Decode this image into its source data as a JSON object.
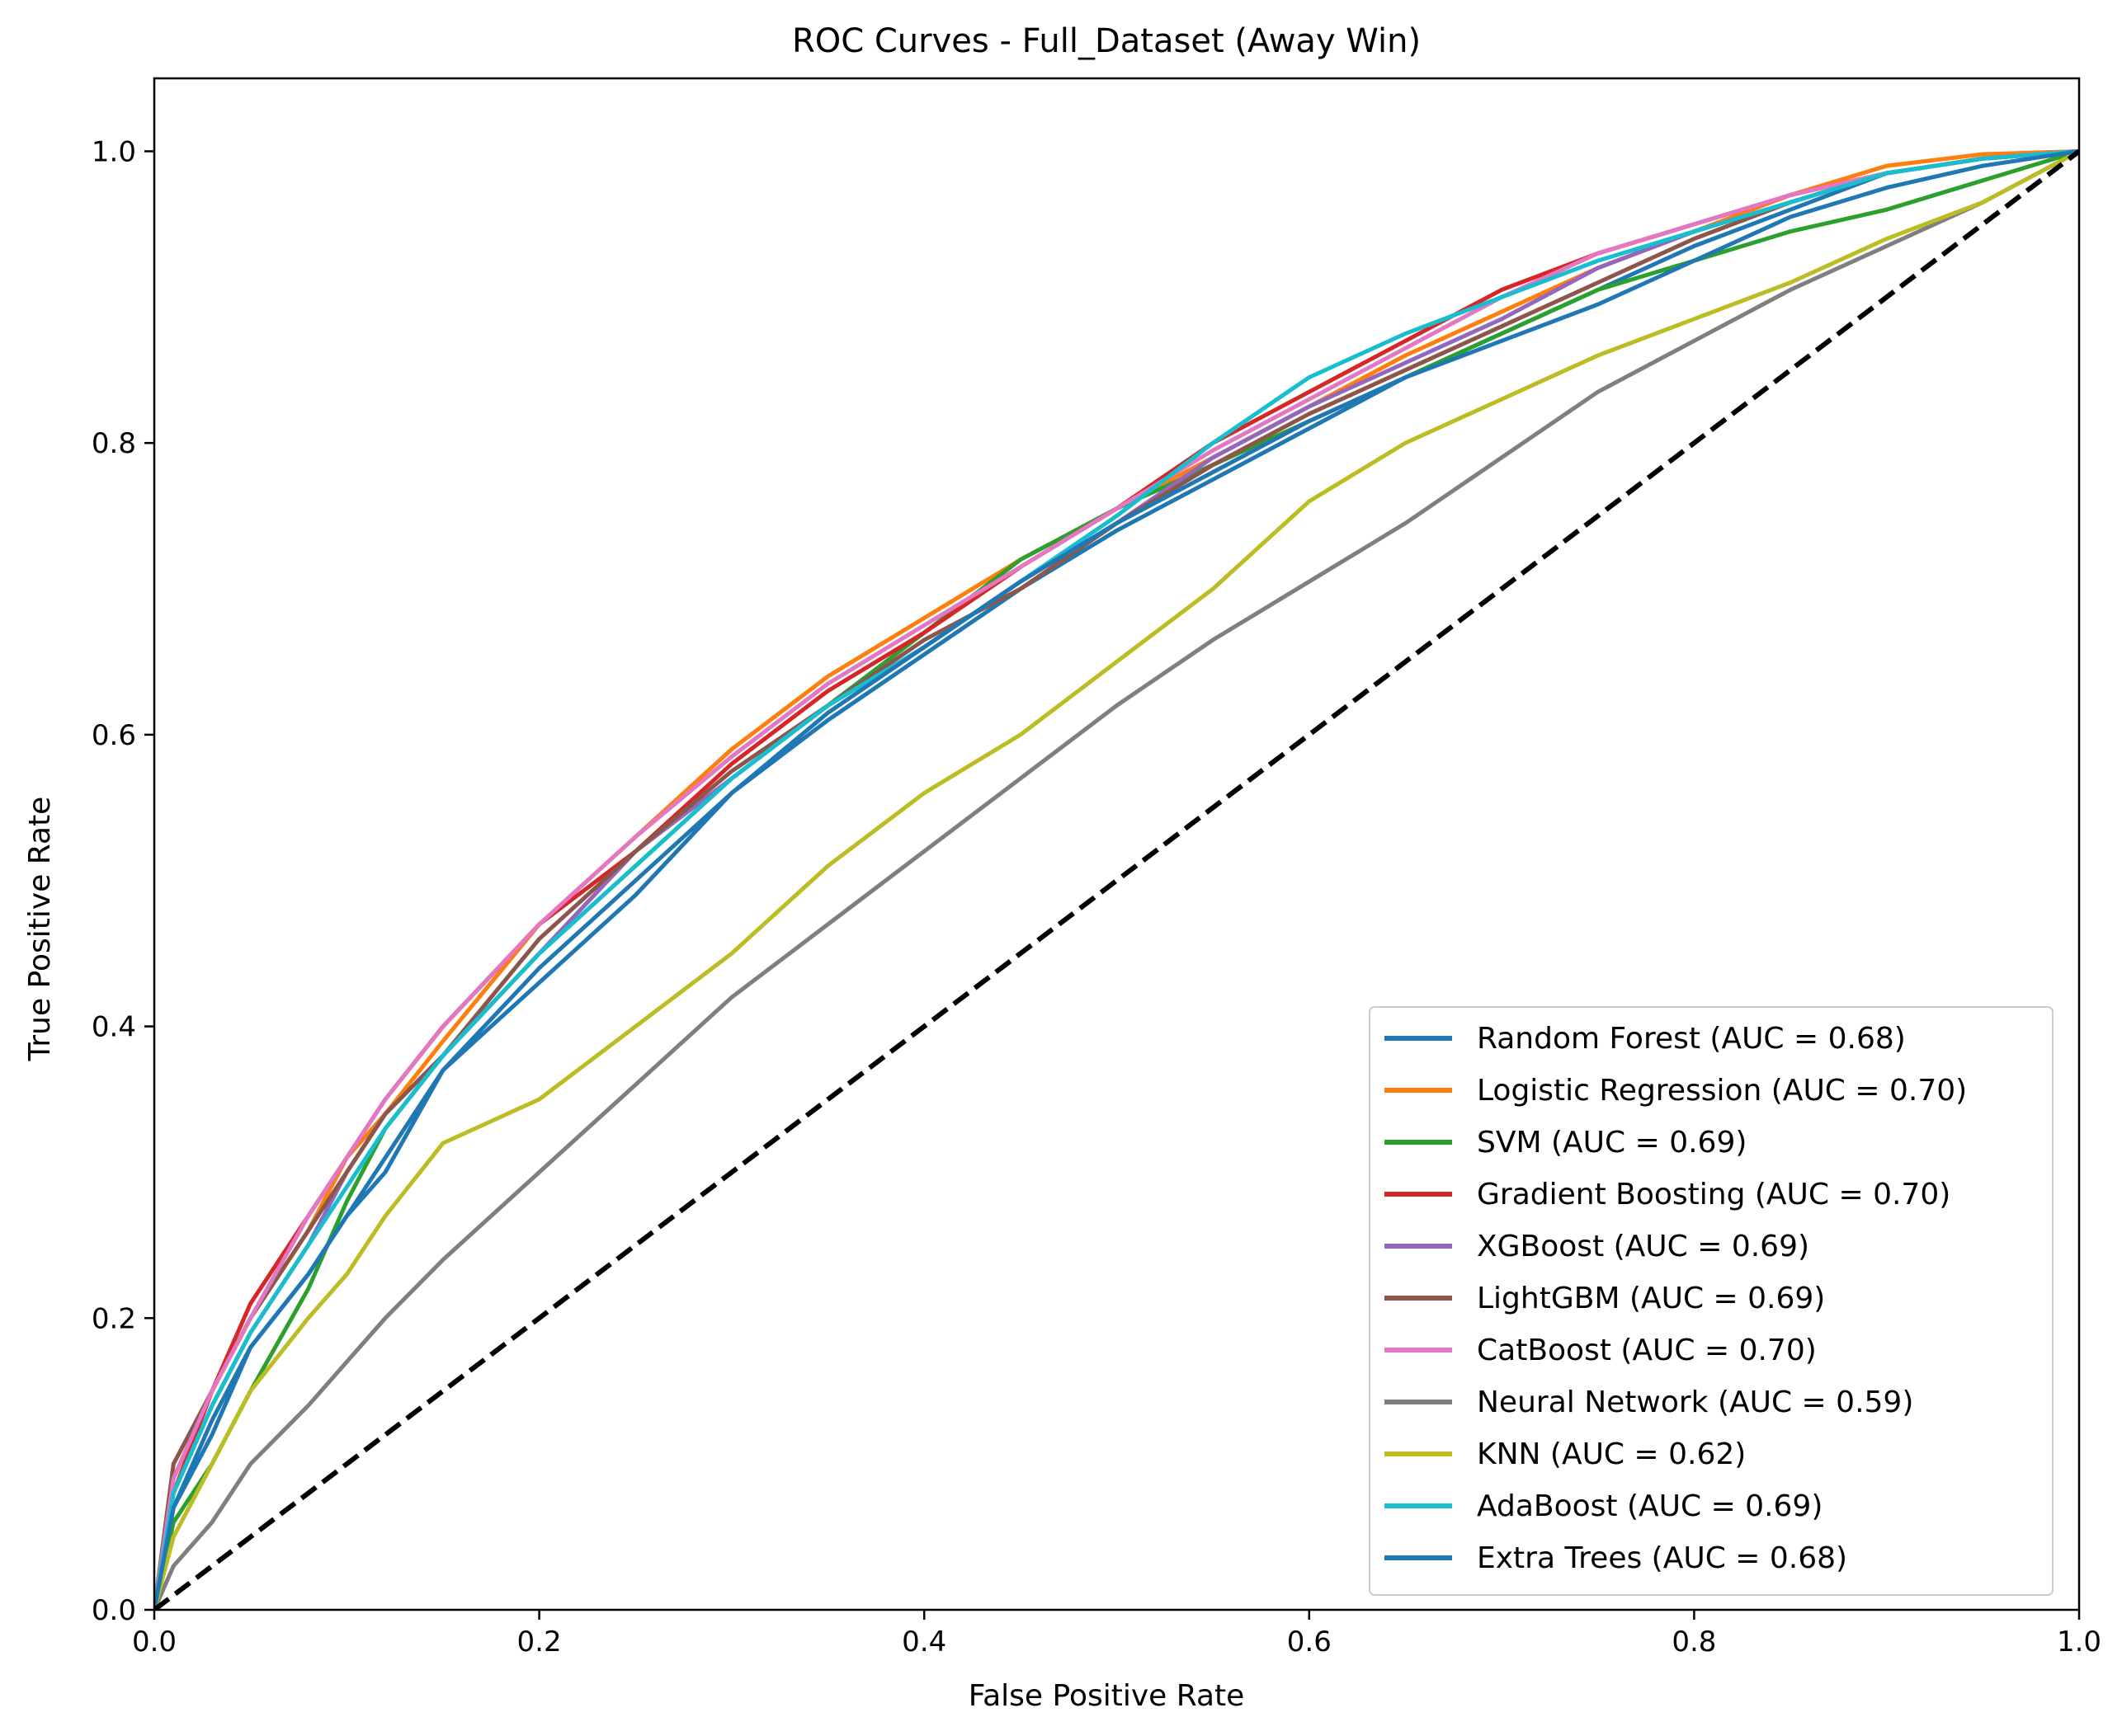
{
  "chart_data": {
    "type": "line",
    "title": "ROC Curves - Full_Dataset (Away Win)",
    "xlabel": "False Positive Rate",
    "ylabel": "True Positive Rate",
    "xlim": [
      0.0,
      1.0
    ],
    "ylim": [
      0.0,
      1.05
    ],
    "xticks": [
      "0.0",
      "0.2",
      "0.4",
      "0.6",
      "0.8",
      "1.0"
    ],
    "yticks": [
      "0.0",
      "0.2",
      "0.4",
      "0.6",
      "0.8",
      "1.0"
    ],
    "grid": false,
    "legend_position": "lower-right",
    "reference_line": {
      "x": [
        0.0,
        1.0
      ],
      "y": [
        0.0,
        1.0
      ],
      "color": "#000000",
      "style": "dashed"
    },
    "series": [
      {
        "name": "Random Forest (AUC = 0.68)",
        "color": "#1f77b4",
        "x": [
          0,
          0.01,
          0.03,
          0.05,
          0.08,
          0.1,
          0.12,
          0.15,
          0.2,
          0.25,
          0.3,
          0.35,
          0.4,
          0.45,
          0.5,
          0.55,
          0.6,
          0.65,
          0.7,
          0.75,
          0.8,
          0.85,
          0.9,
          0.95,
          1.0
        ],
        "y": [
          0,
          0.07,
          0.13,
          0.18,
          0.23,
          0.27,
          0.31,
          0.37,
          0.44,
          0.5,
          0.56,
          0.61,
          0.655,
          0.7,
          0.74,
          0.775,
          0.81,
          0.845,
          0.875,
          0.905,
          0.935,
          0.96,
          0.985,
          0.995,
          1.0
        ]
      },
      {
        "name": "Logistic Regression (AUC = 0.70)",
        "color": "#ff7f0e",
        "x": [
          0,
          0.01,
          0.03,
          0.05,
          0.08,
          0.1,
          0.12,
          0.15,
          0.2,
          0.25,
          0.3,
          0.35,
          0.4,
          0.45,
          0.5,
          0.55,
          0.6,
          0.65,
          0.7,
          0.75,
          0.8,
          0.85,
          0.9,
          0.95,
          1.0
        ],
        "y": [
          0,
          0.09,
          0.15,
          0.2,
          0.26,
          0.31,
          0.34,
          0.39,
          0.47,
          0.53,
          0.59,
          0.64,
          0.68,
          0.72,
          0.755,
          0.79,
          0.825,
          0.86,
          0.89,
          0.92,
          0.945,
          0.97,
          0.99,
          0.998,
          1.0
        ]
      },
      {
        "name": "SVM (AUC = 0.69)",
        "color": "#2ca02c",
        "x": [
          0,
          0.01,
          0.03,
          0.05,
          0.08,
          0.1,
          0.12,
          0.15,
          0.2,
          0.25,
          0.3,
          0.35,
          0.4,
          0.45,
          0.5,
          0.55,
          0.6,
          0.65,
          0.7,
          0.75,
          0.8,
          0.85,
          0.9,
          0.95,
          1.0
        ],
        "y": [
          0,
          0.06,
          0.1,
          0.15,
          0.22,
          0.28,
          0.33,
          0.38,
          0.45,
          0.51,
          0.57,
          0.62,
          0.67,
          0.72,
          0.755,
          0.785,
          0.815,
          0.845,
          0.875,
          0.905,
          0.925,
          0.945,
          0.96,
          0.98,
          1.0
        ]
      },
      {
        "name": "Gradient Boosting (AUC = 0.70)",
        "color": "#d62728",
        "x": [
          0,
          0.01,
          0.03,
          0.05,
          0.08,
          0.1,
          0.12,
          0.15,
          0.2,
          0.25,
          0.3,
          0.35,
          0.4,
          0.45,
          0.5,
          0.55,
          0.6,
          0.65,
          0.7,
          0.75,
          0.8,
          0.85,
          0.9,
          0.95,
          1.0
        ],
        "y": [
          0,
          0.08,
          0.15,
          0.21,
          0.27,
          0.31,
          0.35,
          0.4,
          0.47,
          0.52,
          0.58,
          0.63,
          0.67,
          0.715,
          0.755,
          0.8,
          0.835,
          0.87,
          0.905,
          0.93,
          0.95,
          0.97,
          0.985,
          0.995,
          1.0
        ]
      },
      {
        "name": "XGBoost (AUC = 0.69)",
        "color": "#9467bd",
        "x": [
          0,
          0.01,
          0.03,
          0.05,
          0.08,
          0.1,
          0.12,
          0.15,
          0.2,
          0.25,
          0.3,
          0.35,
          0.4,
          0.45,
          0.5,
          0.55,
          0.6,
          0.65,
          0.7,
          0.75,
          0.8,
          0.85,
          0.9,
          0.95,
          1.0
        ],
        "y": [
          0,
          0.08,
          0.14,
          0.19,
          0.25,
          0.3,
          0.34,
          0.38,
          0.45,
          0.52,
          0.57,
          0.62,
          0.66,
          0.705,
          0.745,
          0.79,
          0.825,
          0.855,
          0.885,
          0.92,
          0.945,
          0.965,
          0.985,
          0.995,
          1.0
        ]
      },
      {
        "name": "LightGBM (AUC = 0.69)",
        "color": "#8c564b",
        "x": [
          0,
          0.01,
          0.03,
          0.05,
          0.08,
          0.1,
          0.12,
          0.15,
          0.2,
          0.25,
          0.3,
          0.35,
          0.4,
          0.45,
          0.5,
          0.55,
          0.6,
          0.65,
          0.7,
          0.75,
          0.8,
          0.85,
          0.9,
          0.95,
          1.0
        ],
        "y": [
          0,
          0.1,
          0.15,
          0.2,
          0.26,
          0.3,
          0.34,
          0.38,
          0.46,
          0.52,
          0.575,
          0.62,
          0.665,
          0.7,
          0.745,
          0.785,
          0.82,
          0.85,
          0.88,
          0.91,
          0.94,
          0.965,
          0.985,
          0.995,
          1.0
        ]
      },
      {
        "name": "CatBoost (AUC = 0.70)",
        "color": "#e377c2",
        "x": [
          0,
          0.01,
          0.03,
          0.05,
          0.08,
          0.1,
          0.12,
          0.15,
          0.2,
          0.25,
          0.3,
          0.35,
          0.4,
          0.45,
          0.5,
          0.55,
          0.6,
          0.65,
          0.7,
          0.75,
          0.8,
          0.85,
          0.9,
          0.95,
          1.0
        ],
        "y": [
          0,
          0.09,
          0.15,
          0.2,
          0.27,
          0.31,
          0.35,
          0.4,
          0.47,
          0.53,
          0.585,
          0.635,
          0.675,
          0.715,
          0.755,
          0.795,
          0.83,
          0.865,
          0.9,
          0.93,
          0.95,
          0.97,
          0.985,
          0.995,
          1.0
        ]
      },
      {
        "name": "Neural Network (AUC = 0.59)",
        "color": "#7f7f7f",
        "x": [
          0,
          0.01,
          0.03,
          0.05,
          0.08,
          0.1,
          0.12,
          0.15,
          0.2,
          0.25,
          0.3,
          0.35,
          0.4,
          0.45,
          0.5,
          0.55,
          0.6,
          0.65,
          0.7,
          0.75,
          0.8,
          0.85,
          0.9,
          0.95,
          1.0
        ],
        "y": [
          0,
          0.03,
          0.06,
          0.1,
          0.14,
          0.17,
          0.2,
          0.24,
          0.3,
          0.36,
          0.42,
          0.47,
          0.52,
          0.57,
          0.62,
          0.665,
          0.705,
          0.745,
          0.79,
          0.835,
          0.87,
          0.905,
          0.935,
          0.965,
          1.0
        ]
      },
      {
        "name": "KNN (AUC = 0.62)",
        "color": "#bcbd22",
        "x": [
          0,
          0.01,
          0.03,
          0.05,
          0.08,
          0.1,
          0.12,
          0.15,
          0.2,
          0.25,
          0.3,
          0.35,
          0.4,
          0.45,
          0.5,
          0.55,
          0.6,
          0.65,
          0.7,
          0.75,
          0.8,
          0.85,
          0.9,
          0.95,
          1.0
        ],
        "y": [
          0,
          0.05,
          0.1,
          0.15,
          0.2,
          0.23,
          0.27,
          0.32,
          0.35,
          0.4,
          0.45,
          0.51,
          0.56,
          0.6,
          0.65,
          0.7,
          0.76,
          0.8,
          0.83,
          0.86,
          0.885,
          0.91,
          0.94,
          0.965,
          1.0
        ]
      },
      {
        "name": "AdaBoost (AUC = 0.69)",
        "color": "#17becf",
        "x": [
          0,
          0.01,
          0.03,
          0.05,
          0.08,
          0.1,
          0.12,
          0.15,
          0.2,
          0.25,
          0.3,
          0.35,
          0.4,
          0.45,
          0.5,
          0.55,
          0.6,
          0.65,
          0.7,
          0.75,
          0.8,
          0.85,
          0.9,
          0.95,
          1.0
        ],
        "y": [
          0,
          0.08,
          0.14,
          0.19,
          0.25,
          0.29,
          0.33,
          0.38,
          0.45,
          0.51,
          0.57,
          0.62,
          0.66,
          0.705,
          0.75,
          0.8,
          0.845,
          0.875,
          0.9,
          0.925,
          0.945,
          0.965,
          0.985,
          0.995,
          1.0
        ]
      },
      {
        "name": "Extra Trees (AUC = 0.68)",
        "color": "#1f77b4",
        "x": [
          0,
          0.01,
          0.03,
          0.05,
          0.08,
          0.1,
          0.12,
          0.15,
          0.2,
          0.25,
          0.3,
          0.35,
          0.4,
          0.45,
          0.5,
          0.55,
          0.6,
          0.65,
          0.7,
          0.75,
          0.8,
          0.85,
          0.9,
          0.95,
          1.0
        ],
        "y": [
          0,
          0.07,
          0.12,
          0.18,
          0.23,
          0.27,
          0.3,
          0.37,
          0.43,
          0.49,
          0.56,
          0.615,
          0.66,
          0.705,
          0.745,
          0.78,
          0.815,
          0.845,
          0.87,
          0.895,
          0.925,
          0.955,
          0.975,
          0.99,
          1.0
        ]
      }
    ]
  }
}
